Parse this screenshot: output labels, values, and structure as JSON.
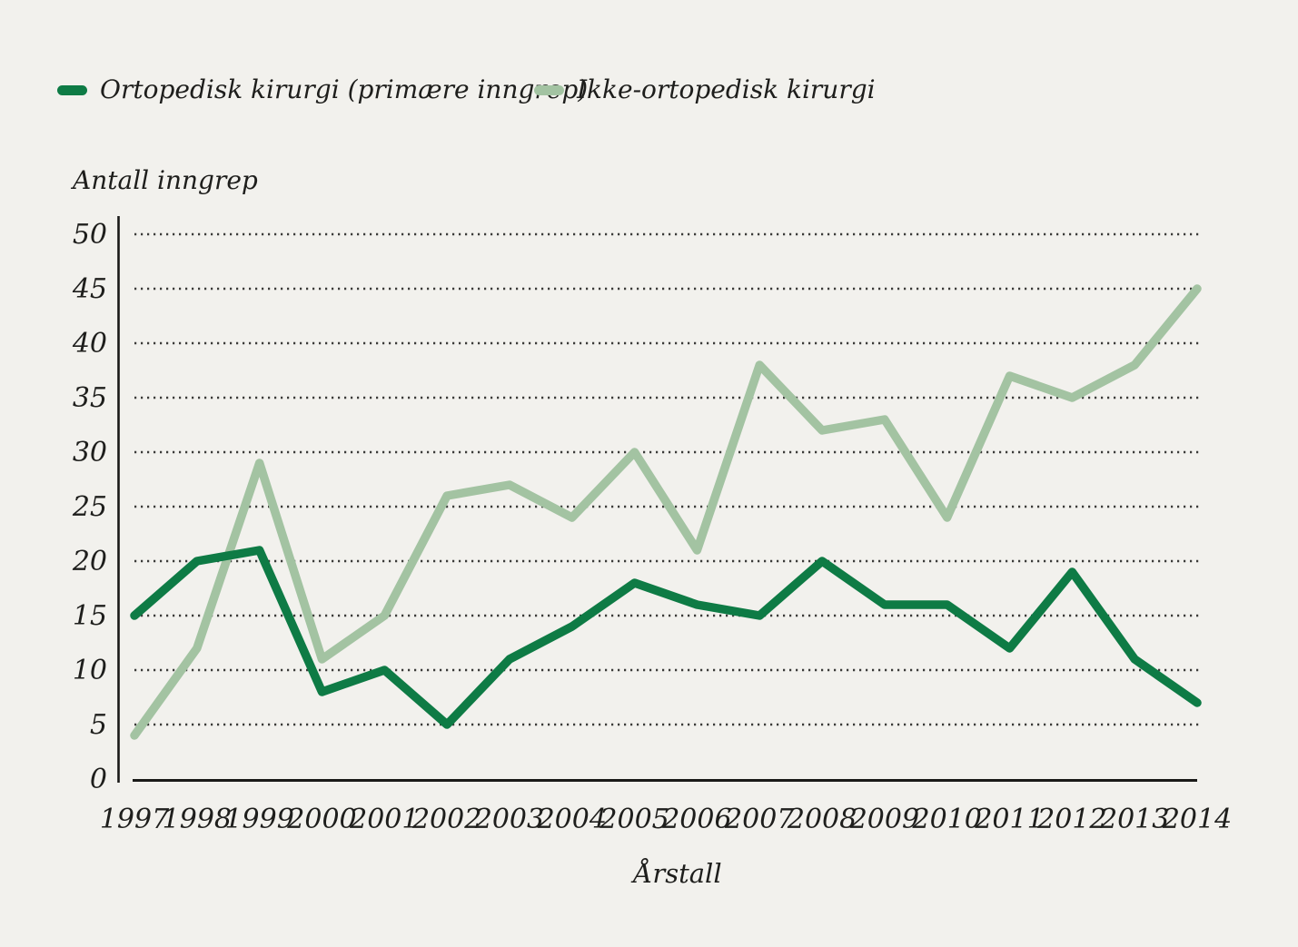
{
  "legend": {
    "items": [
      {
        "label": "Ortopedisk kirurgi (primære inngrep)",
        "color": "#0e7b45"
      },
      {
        "label": "Ikke-ortopedisk kirurgi",
        "color": "#a3c3a2"
      }
    ]
  },
  "axes": {
    "y_title": "Antall inngrep",
    "x_title": "Årstall"
  },
  "chart_data": {
    "type": "line",
    "title": "",
    "xlabel": "Årstall",
    "ylabel": "Antall inngrep",
    "x": [
      1997,
      1998,
      1999,
      2000,
      2001,
      2002,
      2003,
      2004,
      2005,
      2006,
      2007,
      2008,
      2009,
      2010,
      2011,
      2012,
      2013,
      2014
    ],
    "series": [
      {
        "name": "Ortopedisk kirurgi (primære inngrep)",
        "color": "#0e7b45",
        "values": [
          15,
          20,
          21,
          8,
          10,
          5,
          11,
          14,
          18,
          16,
          15,
          20,
          16,
          16,
          12,
          19,
          11,
          7
        ]
      },
      {
        "name": "Ikke-ortopedisk kirurgi",
        "color": "#a3c3a2",
        "values": [
          4,
          12,
          29,
          11,
          15,
          26,
          27,
          24,
          30,
          21,
          38,
          32,
          33,
          24,
          37,
          35,
          38,
          45
        ]
      }
    ],
    "ylim": [
      0,
      50
    ],
    "yticks": [
      0,
      5,
      10,
      15,
      20,
      25,
      30,
      35,
      40,
      45,
      50
    ],
    "grid": "horizontal-dotted",
    "legend_position": "top-left"
  },
  "colors": {
    "background": "#f2f1ed",
    "axis": "#1a1a18",
    "gridline": "#3b3b39",
    "text": "#1e1e1c"
  }
}
